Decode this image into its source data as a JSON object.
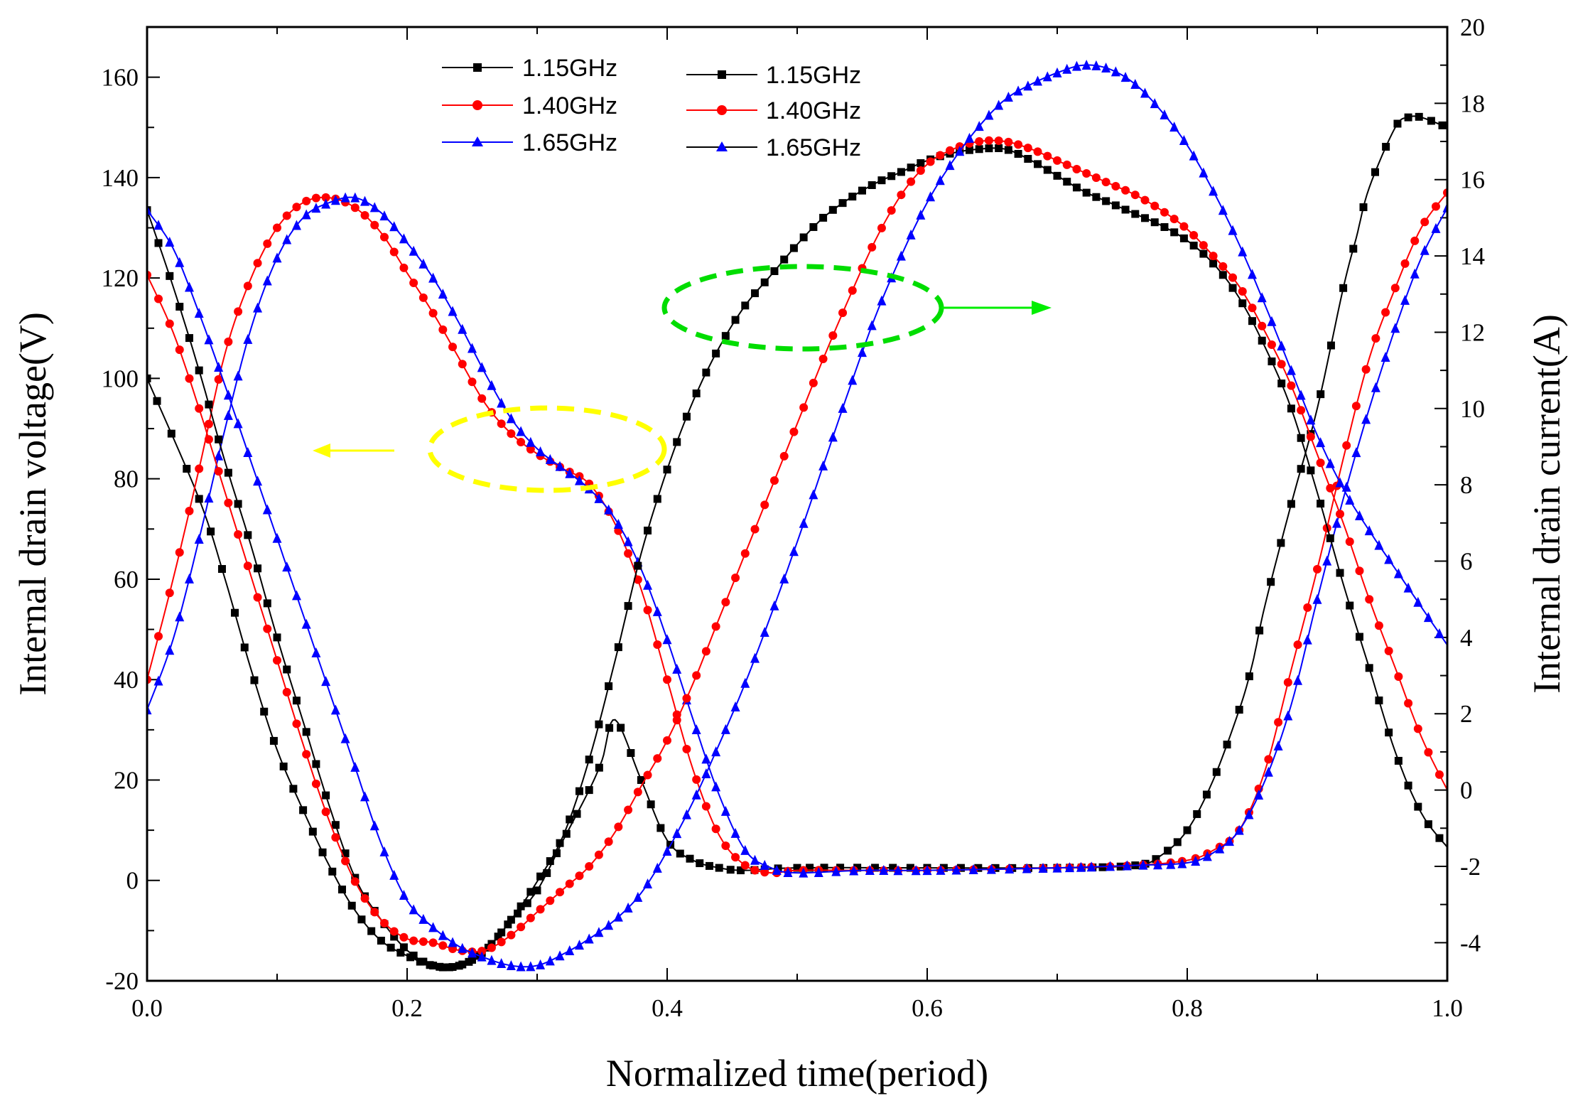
{
  "chart_data": {
    "type": "line",
    "xlabel": "Normalized time(period)",
    "ylabel_left": "Internal drain voltage(V)",
    "ylabel_right": "Internal drain current(A)",
    "xlim": [
      0,
      1
    ],
    "ylim_left": [
      -20,
      170
    ],
    "ylim_right": [
      -5,
      20
    ],
    "x_ticks": [
      "0.0",
      "0.2",
      "0.4",
      "0.6",
      "0.8",
      "1.0"
    ],
    "y_left_ticks": [
      "-20",
      "0",
      "20",
      "40",
      "60",
      "80",
      "100",
      "120",
      "140",
      "160"
    ],
    "y_right_ticks": [
      "-4",
      "-2",
      "0",
      "2",
      "4",
      "6",
      "8",
      "10",
      "12",
      "14",
      "16",
      "18",
      "20"
    ],
    "colors": {
      "black": "#000000",
      "red": "#ff0000",
      "blue": "#0000ff",
      "yellow": "#ffff00",
      "green": "#00dd00",
      "green_arrow": "#00ee00"
    },
    "legend": [
      {
        "label": "1.15GHz",
        "color": "#000000",
        "marker": "square"
      },
      {
        "label": "1.40GHz",
        "color": "#ff0000",
        "marker": "circle"
      },
      {
        "label": "1.65GHz",
        "color": "#0000ff",
        "marker": "triangle"
      },
      {
        "label": "1.15GHz",
        "color": "#000000",
        "marker": "square"
      },
      {
        "label": "1.40GHz",
        "color": "#ff0000",
        "marker": "circle"
      },
      {
        "label": "1.65GHz",
        "color": "#0000ff",
        "marker": "triangle"
      }
    ],
    "annotations": [
      {
        "shape": "dashed-ellipse",
        "color": "yellow",
        "arrow": "left",
        "meaning": "voltage curves use left axis"
      },
      {
        "shape": "dashed-ellipse",
        "color": "green",
        "arrow": "right",
        "meaning": "current curves use right axis"
      }
    ],
    "series": [
      {
        "name": "1.15GHz voltage",
        "axis": "left",
        "color": "#000000",
        "marker": "square",
        "markerSize": 11,
        "points": [
          [
            0,
            100
          ],
          [
            0.04,
            76
          ],
          [
            0.06,
            60
          ],
          [
            0.08,
            42
          ],
          [
            0.1,
            26
          ],
          [
            0.12,
            14
          ],
          [
            0.14,
            3
          ],
          [
            0.16,
            -6
          ],
          [
            0.18,
            -12
          ],
          [
            0.2,
            -15
          ],
          [
            0.22,
            -17
          ],
          [
            0.24,
            -17
          ],
          [
            0.26,
            -14
          ],
          [
            0.28,
            -8
          ],
          [
            0.3,
            -2
          ],
          [
            0.32,
            8
          ],
          [
            0.34,
            18
          ],
          [
            0.35,
            24
          ],
          [
            0.36,
            32
          ],
          [
            0.38,
            20
          ],
          [
            0.4,
            8
          ],
          [
            0.42,
            4
          ],
          [
            0.44,
            2.5
          ],
          [
            0.46,
            2
          ],
          [
            0.5,
            2.5
          ],
          [
            0.6,
            2.5
          ],
          [
            0.7,
            2.5
          ],
          [
            0.76,
            3
          ],
          [
            0.78,
            5
          ],
          [
            0.8,
            10
          ],
          [
            0.82,
            20
          ],
          [
            0.84,
            34
          ],
          [
            0.85,
            43
          ],
          [
            0.86,
            55
          ],
          [
            0.88,
            75
          ],
          [
            0.9,
            94
          ],
          [
            0.92,
            118
          ],
          [
            0.93,
            128
          ],
          [
            0.94,
            138
          ],
          [
            0.96,
            150
          ],
          [
            0.97,
            152
          ],
          [
            0.98,
            152
          ],
          [
            1.0,
            150
          ]
        ]
      },
      {
        "name": "1.40GHz voltage",
        "axis": "left",
        "color": "#ff0000",
        "marker": "circle",
        "markerSize": 12,
        "points": [
          [
            0,
            40
          ],
          [
            0.02,
            60
          ],
          [
            0.04,
            82
          ],
          [
            0.06,
            105
          ],
          [
            0.08,
            120
          ],
          [
            0.1,
            130
          ],
          [
            0.12,
            135
          ],
          [
            0.14,
            136
          ],
          [
            0.16,
            134
          ],
          [
            0.18,
            129
          ],
          [
            0.2,
            121
          ],
          [
            0.22,
            113
          ],
          [
            0.24,
            104
          ],
          [
            0.26,
            95
          ],
          [
            0.28,
            89
          ],
          [
            0.3,
            85
          ],
          [
            0.32,
            82
          ],
          [
            0.34,
            79
          ],
          [
            0.36,
            71
          ],
          [
            0.38,
            58
          ],
          [
            0.4,
            40
          ],
          [
            0.42,
            22
          ],
          [
            0.44,
            9
          ],
          [
            0.46,
            3
          ],
          [
            0.48,
            1.5
          ],
          [
            0.5,
            2
          ],
          [
            0.55,
            2
          ],
          [
            0.6,
            2
          ],
          [
            0.7,
            2.5
          ],
          [
            0.76,
            3
          ],
          [
            0.8,
            4
          ],
          [
            0.82,
            6
          ],
          [
            0.84,
            10
          ],
          [
            0.86,
            22
          ],
          [
            0.88,
            42
          ],
          [
            0.9,
            62
          ],
          [
            0.92,
            84
          ],
          [
            0.94,
            104
          ],
          [
            0.96,
            118
          ],
          [
            0.98,
            130
          ],
          [
            1.0,
            137
          ]
        ]
      },
      {
        "name": "1.65GHz voltage",
        "axis": "left",
        "color": "#0000ff",
        "marker": "triangle",
        "markerSize": 13,
        "points": [
          [
            0,
            34
          ],
          [
            0.02,
            48
          ],
          [
            0.04,
            68
          ],
          [
            0.06,
            90
          ],
          [
            0.08,
            110
          ],
          [
            0.1,
            124
          ],
          [
            0.12,
            132
          ],
          [
            0.14,
            135
          ],
          [
            0.16,
            136
          ],
          [
            0.18,
            133
          ],
          [
            0.2,
            127
          ],
          [
            0.22,
            120
          ],
          [
            0.24,
            111
          ],
          [
            0.26,
            101
          ],
          [
            0.28,
            92
          ],
          [
            0.3,
            86
          ],
          [
            0.32,
            82
          ],
          [
            0.34,
            78
          ],
          [
            0.36,
            72
          ],
          [
            0.38,
            62
          ],
          [
            0.4,
            48
          ],
          [
            0.42,
            32
          ],
          [
            0.44,
            17
          ],
          [
            0.46,
            6
          ],
          [
            0.48,
            2.5
          ],
          [
            0.5,
            1.5
          ],
          [
            0.55,
            2
          ],
          [
            0.6,
            2
          ],
          [
            0.7,
            2.5
          ],
          [
            0.76,
            3
          ],
          [
            0.8,
            3.5
          ],
          [
            0.82,
            5.5
          ],
          [
            0.84,
            10
          ],
          [
            0.86,
            20
          ],
          [
            0.88,
            35
          ],
          [
            0.9,
            56
          ],
          [
            0.92,
            76
          ],
          [
            0.94,
            94
          ],
          [
            0.96,
            110
          ],
          [
            0.98,
            124
          ],
          [
            1.0,
            134
          ]
        ]
      },
      {
        "name": "1.15GHz current",
        "axis": "right",
        "color": "#000000",
        "marker": "square",
        "markerSize": 11,
        "points": [
          [
            0,
            15.2
          ],
          [
            0.02,
            13.2
          ],
          [
            0.04,
            11.0
          ],
          [
            0.06,
            8.6
          ],
          [
            0.08,
            6.4
          ],
          [
            0.1,
            4.0
          ],
          [
            0.12,
            1.8
          ],
          [
            0.14,
            -0.4
          ],
          [
            0.16,
            -2.3
          ],
          [
            0.18,
            -3.4
          ],
          [
            0.2,
            -4.2
          ],
          [
            0.22,
            -4.6
          ],
          [
            0.24,
            -4.6
          ],
          [
            0.26,
            -4.2
          ],
          [
            0.28,
            -3.4
          ],
          [
            0.3,
            -2.4
          ],
          [
            0.32,
            -1.2
          ],
          [
            0.34,
            0.8
          ],
          [
            0.36,
            3.4
          ],
          [
            0.38,
            6.2
          ],
          [
            0.4,
            8.4
          ],
          [
            0.42,
            10.2
          ],
          [
            0.44,
            11.6
          ],
          [
            0.46,
            12.7
          ],
          [
            0.48,
            13.5
          ],
          [
            0.5,
            14.3
          ],
          [
            0.52,
            15.0
          ],
          [
            0.54,
            15.5
          ],
          [
            0.56,
            15.9
          ],
          [
            0.58,
            16.2
          ],
          [
            0.6,
            16.5
          ],
          [
            0.62,
            16.7
          ],
          [
            0.64,
            16.8
          ],
          [
            0.66,
            16.8
          ],
          [
            0.68,
            16.5
          ],
          [
            0.7,
            16.1
          ],
          [
            0.72,
            15.7
          ],
          [
            0.74,
            15.4
          ],
          [
            0.76,
            15.1
          ],
          [
            0.78,
            14.8
          ],
          [
            0.8,
            14.4
          ],
          [
            0.82,
            13.8
          ],
          [
            0.84,
            12.9
          ],
          [
            0.86,
            11.6
          ],
          [
            0.88,
            10.0
          ],
          [
            0.9,
            7.8
          ],
          [
            0.92,
            5.4
          ],
          [
            0.94,
            3.2
          ],
          [
            0.96,
            1.0
          ],
          [
            0.98,
            -0.6
          ],
          [
            1.0,
            -1.5
          ]
        ]
      },
      {
        "name": "1.40GHz current",
        "axis": "right",
        "color": "#ff0000",
        "marker": "circle",
        "markerSize": 12,
        "points": [
          [
            0,
            13.5
          ],
          [
            0.02,
            12.0
          ],
          [
            0.04,
            10.0
          ],
          [
            0.06,
            7.8
          ],
          [
            0.08,
            5.6
          ],
          [
            0.1,
            3.4
          ],
          [
            0.12,
            1.2
          ],
          [
            0.14,
            -0.8
          ],
          [
            0.16,
            -2.4
          ],
          [
            0.18,
            -3.4
          ],
          [
            0.2,
            -3.9
          ],
          [
            0.22,
            -4.0
          ],
          [
            0.24,
            -4.2
          ],
          [
            0.26,
            -4.2
          ],
          [
            0.28,
            -3.8
          ],
          [
            0.3,
            -3.2
          ],
          [
            0.32,
            -2.6
          ],
          [
            0.34,
            -2.0
          ],
          [
            0.36,
            -1.1
          ],
          [
            0.38,
            0.1
          ],
          [
            0.4,
            1.3
          ],
          [
            0.42,
            2.8
          ],
          [
            0.44,
            4.5
          ],
          [
            0.46,
            6.2
          ],
          [
            0.48,
            7.9
          ],
          [
            0.5,
            9.6
          ],
          [
            0.52,
            11.3
          ],
          [
            0.54,
            12.9
          ],
          [
            0.56,
            14.4
          ],
          [
            0.58,
            15.6
          ],
          [
            0.6,
            16.4
          ],
          [
            0.62,
            16.8
          ],
          [
            0.64,
            17.0
          ],
          [
            0.66,
            17.0
          ],
          [
            0.68,
            16.8
          ],
          [
            0.7,
            16.5
          ],
          [
            0.72,
            16.2
          ],
          [
            0.74,
            15.9
          ],
          [
            0.76,
            15.6
          ],
          [
            0.78,
            15.2
          ],
          [
            0.8,
            14.7
          ],
          [
            0.82,
            14.0
          ],
          [
            0.84,
            13.2
          ],
          [
            0.86,
            12.0
          ],
          [
            0.88,
            10.6
          ],
          [
            0.9,
            8.8
          ],
          [
            0.92,
            7.0
          ],
          [
            0.94,
            5.0
          ],
          [
            0.96,
            3.2
          ],
          [
            0.98,
            1.4
          ],
          [
            1.0,
            0
          ]
        ]
      },
      {
        "name": "1.65GHz current",
        "axis": "right",
        "color": "#0000ff",
        "marker": "triangle",
        "markerSize": 13,
        "points": [
          [
            0,
            15.2
          ],
          [
            0.02,
            14.2
          ],
          [
            0.04,
            12.5
          ],
          [
            0.06,
            10.6
          ],
          [
            0.08,
            8.6
          ],
          [
            0.1,
            6.6
          ],
          [
            0.12,
            4.6
          ],
          [
            0.14,
            2.6
          ],
          [
            0.16,
            0.6
          ],
          [
            0.18,
            -1.4
          ],
          [
            0.2,
            -2.9
          ],
          [
            0.22,
            -3.6
          ],
          [
            0.24,
            -4.1
          ],
          [
            0.26,
            -4.4
          ],
          [
            0.28,
            -4.6
          ],
          [
            0.3,
            -4.6
          ],
          [
            0.32,
            -4.3
          ],
          [
            0.34,
            -3.9
          ],
          [
            0.36,
            -3.4
          ],
          [
            0.38,
            -2.7
          ],
          [
            0.4,
            -1.6
          ],
          [
            0.42,
            -0.3
          ],
          [
            0.44,
            1.2
          ],
          [
            0.46,
            2.8
          ],
          [
            0.48,
            4.6
          ],
          [
            0.5,
            6.5
          ],
          [
            0.52,
            8.5
          ],
          [
            0.54,
            10.5
          ],
          [
            0.56,
            12.4
          ],
          [
            0.58,
            14.0
          ],
          [
            0.6,
            15.4
          ],
          [
            0.62,
            16.5
          ],
          [
            0.64,
            17.4
          ],
          [
            0.66,
            18.1
          ],
          [
            0.68,
            18.5
          ],
          [
            0.7,
            18.8
          ],
          [
            0.72,
            19.0
          ],
          [
            0.74,
            18.9
          ],
          [
            0.76,
            18.5
          ],
          [
            0.78,
            17.8
          ],
          [
            0.8,
            16.9
          ],
          [
            0.82,
            15.7
          ],
          [
            0.84,
            14.3
          ],
          [
            0.86,
            12.7
          ],
          [
            0.88,
            11.0
          ],
          [
            0.9,
            9.3
          ],
          [
            0.92,
            7.9
          ],
          [
            0.94,
            6.8
          ],
          [
            0.96,
            5.8
          ],
          [
            0.98,
            4.8
          ],
          [
            1.0,
            3.8
          ]
        ]
      }
    ]
  }
}
